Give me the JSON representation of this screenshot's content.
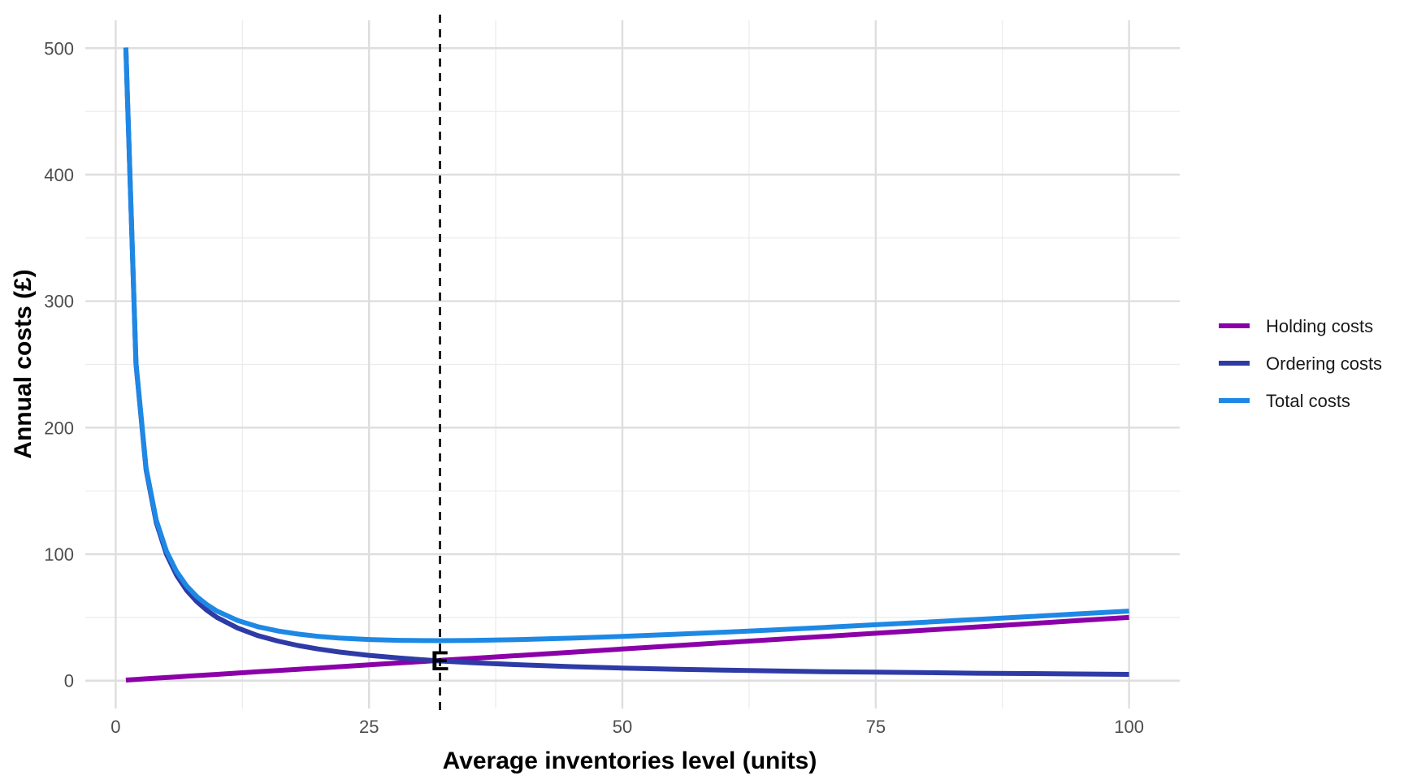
{
  "chart_data": {
    "type": "line",
    "title": "",
    "xlabel": "Average inventories level (units)",
    "ylabel": "Annual costs (£)",
    "xlim": [
      -3,
      105
    ],
    "ylim": [
      -22,
      522
    ],
    "x_ticks": [
      0,
      25,
      50,
      75,
      100
    ],
    "x_tick_labels": [
      "0",
      "25",
      "50",
      "75",
      "100"
    ],
    "y_ticks": [
      0,
      100,
      200,
      300,
      400,
      500
    ],
    "y_tick_labels": [
      "0",
      "100",
      "200",
      "300",
      "400",
      "500"
    ],
    "x_minor_ticks": [
      12.5,
      37.5,
      62.5,
      87.5
    ],
    "y_minor_ticks": [
      50,
      150,
      250,
      350,
      450
    ],
    "grid": true,
    "legend_position": "right",
    "x": [
      1,
      2,
      3,
      4,
      5,
      6,
      7,
      8,
      9,
      10,
      12,
      14,
      16,
      18,
      20,
      22,
      25,
      28,
      30,
      32,
      35,
      40,
      45,
      50,
      55,
      60,
      65,
      70,
      75,
      80,
      85,
      90,
      95,
      100
    ],
    "series": [
      {
        "name": "Holding costs",
        "color": "#8B00A8",
        "values": [
          0.5,
          1,
          1.5,
          2,
          2.5,
          3,
          3.5,
          4,
          4.5,
          5,
          6,
          7,
          8,
          9,
          10,
          11,
          12.5,
          14,
          15,
          16,
          17.5,
          20,
          22.5,
          25,
          27.5,
          30,
          32.5,
          35,
          37.5,
          40,
          42.5,
          45,
          47.5,
          50
        ]
      },
      {
        "name": "Ordering costs",
        "color": "#2E3BA6",
        "values": [
          500,
          250,
          166.7,
          125,
          100,
          83.3,
          71.4,
          62.5,
          55.6,
          50,
          41.7,
          35.7,
          31.3,
          27.8,
          25,
          22.7,
          20,
          17.9,
          16.7,
          15.6,
          14.3,
          12.5,
          11.1,
          10,
          9.1,
          8.3,
          7.7,
          7.1,
          6.7,
          6.3,
          5.9,
          5.6,
          5.3,
          5
        ]
      },
      {
        "name": "Total costs",
        "color": "#1E88E5",
        "values": [
          500.5,
          251,
          168.2,
          127,
          102.5,
          86.3,
          74.9,
          66.5,
          60.1,
          55,
          47.7,
          42.7,
          39.3,
          36.8,
          35,
          33.7,
          32.5,
          31.9,
          31.7,
          31.6,
          31.8,
          32.5,
          33.6,
          35,
          36.6,
          38.3,
          40.2,
          42.1,
          44.2,
          46.3,
          48.4,
          50.6,
          52.8,
          55
        ]
      }
    ],
    "reference_line": {
      "x": 32,
      "style": "dashed",
      "color": "#000000"
    },
    "annotation": {
      "text": "E",
      "x": 32,
      "y": 16
    }
  }
}
